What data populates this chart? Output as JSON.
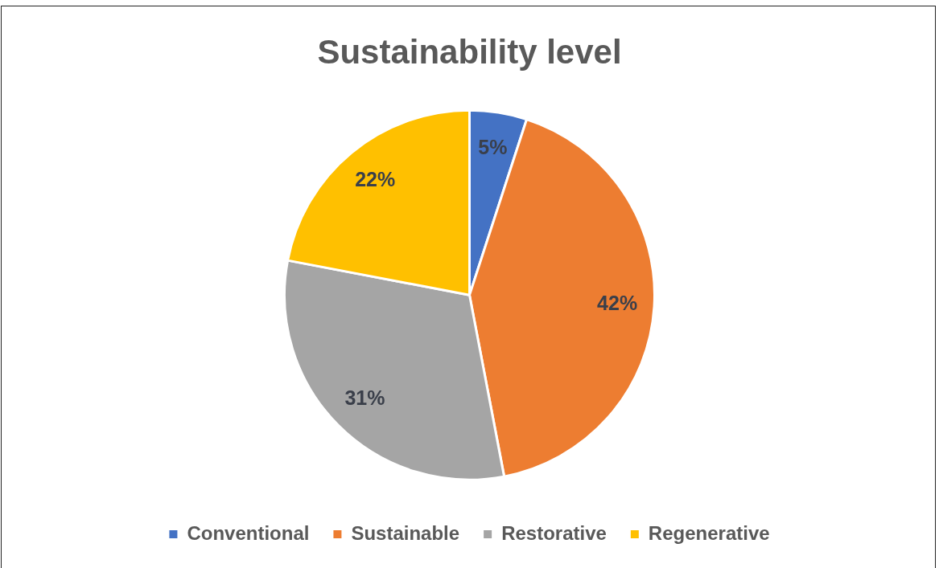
{
  "chart_data": {
    "type": "pie",
    "title": "Sustainability level",
    "categories": [
      "Conventional",
      "Sustainable",
      "Restorative",
      "Regenerative"
    ],
    "values": [
      5,
      42,
      31,
      22
    ],
    "colors": [
      "#4472c4",
      "#ed7d31",
      "#a5a5a5",
      "#ffc000"
    ],
    "value_labels": [
      "5%",
      "42%",
      "31%",
      "22%"
    ],
    "legend": "bottom"
  }
}
